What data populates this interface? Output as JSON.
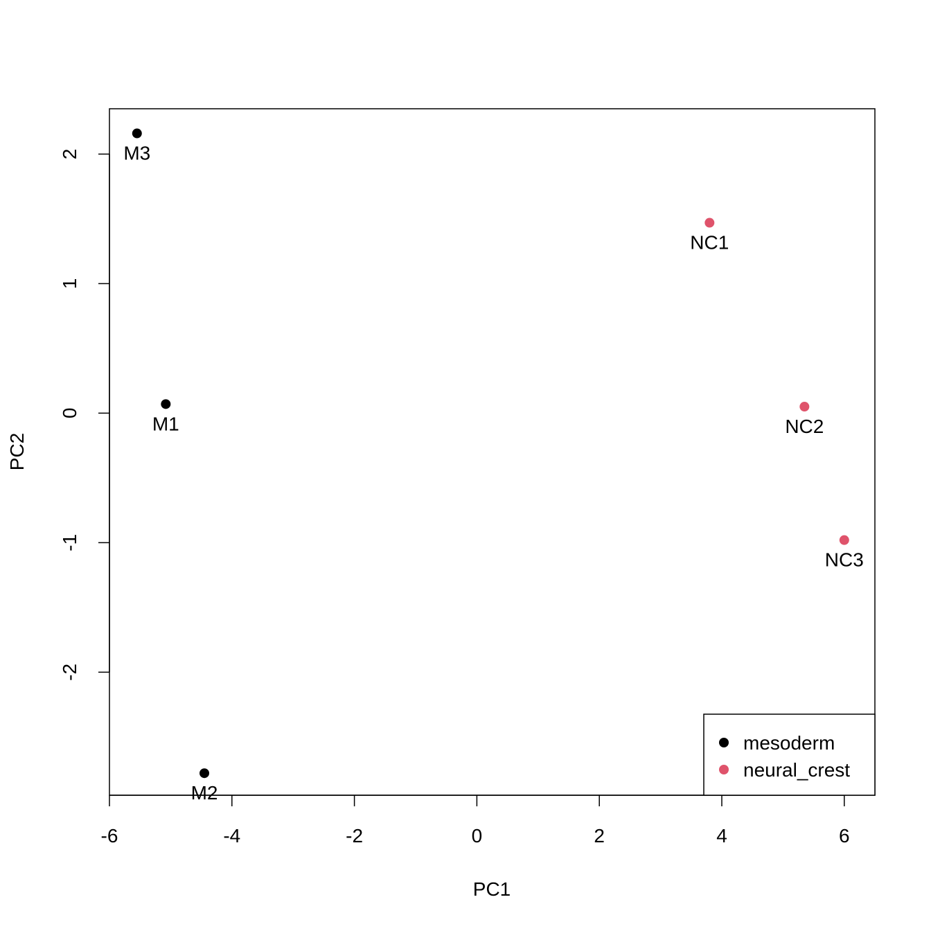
{
  "chart_data": {
    "type": "scatter",
    "title": "",
    "xlabel": "PC1",
    "ylabel": "PC2",
    "xlim": [
      -6,
      6.5
    ],
    "ylim": [
      -2.95,
      2.35
    ],
    "x_ticks": [
      -6,
      -4,
      -2,
      0,
      2,
      4,
      6
    ],
    "y_ticks": [
      -2,
      -1,
      0,
      1,
      2
    ],
    "x_tick_labels": [
      "-6",
      "-4",
      "-2",
      "0",
      "2",
      "4",
      "6"
    ],
    "y_tick_labels": [
      "-2",
      "-1",
      "0",
      "1",
      "2"
    ],
    "grid": false,
    "legend_position": "bottom-right",
    "series": [
      {
        "name": "mesoderm",
        "color": "#000000",
        "points": [
          {
            "label": "M1",
            "x": -5.08,
            "y": 0.07
          },
          {
            "label": "M2",
            "x": -4.45,
            "y": -2.78
          },
          {
            "label": "M3",
            "x": -5.55,
            "y": 2.16
          }
        ]
      },
      {
        "name": "neural_crest",
        "color": "#DF536B",
        "points": [
          {
            "label": "NC1",
            "x": 3.8,
            "y": 1.47
          },
          {
            "label": "NC2",
            "x": 5.35,
            "y": 0.05
          },
          {
            "label": "NC3",
            "x": 6.0,
            "y": -0.98
          }
        ]
      }
    ]
  }
}
